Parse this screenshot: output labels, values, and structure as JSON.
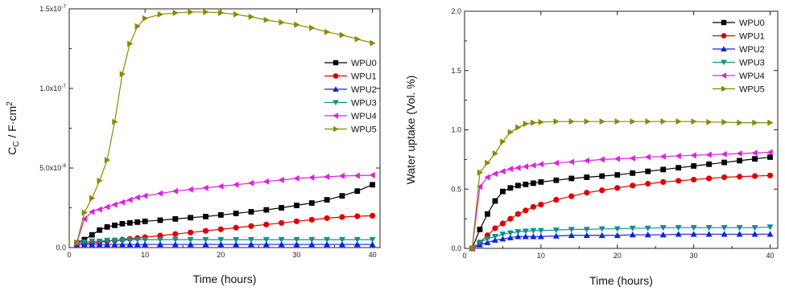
{
  "chart_data": [
    {
      "type": "line",
      "xlabel": "Time (hours)",
      "ylabel": {
        "main": "C",
        "sub": "C",
        "rest": " / F·cm",
        "sup": "2"
      },
      "xlim": [
        0,
        41
      ],
      "ylim": [
        0,
        1.5e-07
      ],
      "xticks": [
        0,
        10,
        20,
        30,
        40
      ],
      "yticks": [
        {
          "v": 0,
          "mant": "0.0",
          "exp": ""
        },
        {
          "v": 5e-08,
          "mant": "5.0x10",
          "exp": "-8"
        },
        {
          "v": 1e-07,
          "mant": "1.0x10",
          "exp": "-7"
        },
        {
          "v": 1.5e-07,
          "mant": "1.5x10",
          "exp": "-7"
        }
      ],
      "legend_position": "right",
      "series": [
        {
          "name": "WPU0",
          "color": "#000000",
          "marker": "square",
          "x": [
            1,
            2,
            3,
            4,
            5,
            6,
            7,
            8,
            9,
            10,
            12,
            14,
            16,
            18,
            20,
            22,
            24,
            26,
            28,
            30,
            32,
            34,
            36,
            38,
            40
          ],
          "y": [
            3e-09,
            5e-09,
            8e-09,
            1.1e-08,
            1.3e-08,
            1.4e-08,
            1.5e-08,
            1.55e-08,
            1.6e-08,
            1.65e-08,
            1.72e-08,
            1.8e-08,
            1.88e-08,
            1.95e-08,
            2.05e-08,
            2.15e-08,
            2.25e-08,
            2.37e-08,
            2.5e-08,
            2.65e-08,
            2.8e-08,
            3e-08,
            3.25e-08,
            3.55e-08,
            3.95e-08
          ]
        },
        {
          "name": "WPU1",
          "color": "#e00000",
          "marker": "circle",
          "x": [
            1,
            2,
            3,
            4,
            5,
            6,
            7,
            8,
            9,
            10,
            12,
            14,
            16,
            18,
            20,
            22,
            24,
            26,
            28,
            30,
            32,
            34,
            36,
            38,
            40
          ],
          "y": [
            2e-09,
            2.5e-09,
            3e-09,
            3.5e-09,
            4e-09,
            4.5e-09,
            5e-09,
            5.5e-09,
            6e-09,
            6.5e-09,
            7.5e-09,
            8.5e-09,
            9.5e-09,
            1.05e-08,
            1.15e-08,
            1.25e-08,
            1.35e-08,
            1.45e-08,
            1.55e-08,
            1.65e-08,
            1.75e-08,
            1.85e-08,
            1.92e-08,
            1.97e-08,
            2e-08
          ]
        },
        {
          "name": "WPU2",
          "color": "#1020e0",
          "marker": "triangle-up",
          "x": [
            1,
            2,
            3,
            4,
            5,
            6,
            7,
            8,
            9,
            10,
            12,
            14,
            16,
            18,
            20,
            22,
            24,
            26,
            28,
            30,
            32,
            34,
            36,
            38,
            40
          ],
          "y": [
            2e-09,
            2e-09,
            2e-09,
            2e-09,
            2e-09,
            2e-09,
            2e-09,
            2e-09,
            2e-09,
            2e-09,
            2e-09,
            2e-09,
            2e-09,
            2e-09,
            2e-09,
            2e-09,
            2e-09,
            2e-09,
            2e-09,
            2e-09,
            2e-09,
            2e-09,
            2e-09,
            2e-09,
            2e-09
          ]
        },
        {
          "name": "WPU3",
          "color": "#109090",
          "marker": "triangle-down",
          "x": [
            1,
            2,
            3,
            4,
            5,
            6,
            7,
            8,
            9,
            10,
            12,
            14,
            16,
            18,
            20,
            22,
            24,
            26,
            28,
            30,
            32,
            34,
            36,
            38,
            40
          ],
          "y": [
            3e-09,
            3.5e-09,
            4e-09,
            4e-09,
            4.5e-09,
            4.5e-09,
            4.5e-09,
            5e-09,
            5e-09,
            5e-09,
            5e-09,
            5e-09,
            5e-09,
            5e-09,
            5e-09,
            5e-09,
            5e-09,
            5e-09,
            5e-09,
            5e-09,
            5e-09,
            5e-09,
            5e-09,
            5e-09,
            5e-09
          ]
        },
        {
          "name": "WPU4",
          "color": "#e020e0",
          "marker": "triangle-left",
          "x": [
            1,
            2,
            3,
            4,
            5,
            6,
            7,
            8,
            9,
            10,
            12,
            14,
            16,
            18,
            20,
            22,
            24,
            26,
            28,
            30,
            32,
            34,
            36,
            38,
            40
          ],
          "y": [
            3e-09,
            1.8e-08,
            2.25e-08,
            2.4e-08,
            2.55e-08,
            2.7e-08,
            2.85e-08,
            3e-08,
            3.15e-08,
            3.25e-08,
            3.4e-08,
            3.55e-08,
            3.65e-08,
            3.75e-08,
            3.85e-08,
            3.95e-08,
            4.05e-08,
            4.15e-08,
            4.25e-08,
            4.35e-08,
            4.4e-08,
            4.45e-08,
            4.5e-08,
            4.52e-08,
            4.55e-08
          ]
        },
        {
          "name": "WPU5",
          "color": "#8a8a00",
          "marker": "triangle-right",
          "x": [
            1,
            2,
            3,
            4,
            5,
            6,
            7,
            8,
            9,
            10,
            12,
            14,
            16,
            18,
            20,
            22,
            24,
            26,
            28,
            30,
            32,
            34,
            36,
            38,
            40
          ],
          "y": [
            3e-09,
            2.2e-08,
            3.1e-08,
            4.2e-08,
            5.5e-08,
            7.9e-08,
            1.09e-07,
            1.28e-07,
            1.39e-07,
            1.44e-07,
            1.465e-07,
            1.475e-07,
            1.48e-07,
            1.48e-07,
            1.475e-07,
            1.465e-07,
            1.45e-07,
            1.43e-07,
            1.415e-07,
            1.4e-07,
            1.38e-07,
            1.355e-07,
            1.335e-07,
            1.31e-07,
            1.285e-07
          ]
        }
      ]
    },
    {
      "type": "line",
      "xlabel": "Time (hours)",
      "ylabel": "Water uptake (Vol. %)",
      "xlim": [
        0,
        41
      ],
      "ylim": [
        0,
        2.0
      ],
      "xticks": [
        0,
        10,
        20,
        30,
        40
      ],
      "yticks": [
        {
          "v": 0,
          "mant": "0.0",
          "exp": ""
        },
        {
          "v": 0.5,
          "mant": "0.5",
          "exp": ""
        },
        {
          "v": 1.0,
          "mant": "1.0",
          "exp": ""
        },
        {
          "v": 1.5,
          "mant": "1.5",
          "exp": ""
        },
        {
          "v": 2.0,
          "mant": "2.0",
          "exp": ""
        }
      ],
      "legend_position": "top-right",
      "series": [
        {
          "name": "WPU0",
          "color": "#000000",
          "marker": "square",
          "x": [
            1,
            2,
            3,
            4,
            5,
            6,
            7,
            8,
            9,
            10,
            12,
            14,
            16,
            18,
            20,
            22,
            24,
            26,
            28,
            30,
            32,
            34,
            36,
            38,
            40
          ],
          "y": [
            0,
            0.16,
            0.29,
            0.4,
            0.48,
            0.51,
            0.53,
            0.54,
            0.55,
            0.56,
            0.575,
            0.59,
            0.6,
            0.61,
            0.62,
            0.635,
            0.65,
            0.665,
            0.68,
            0.695,
            0.71,
            0.725,
            0.74,
            0.755,
            0.77
          ]
        },
        {
          "name": "WPU1",
          "color": "#e00000",
          "marker": "circle",
          "x": [
            1,
            2,
            3,
            4,
            5,
            6,
            7,
            8,
            9,
            10,
            12,
            14,
            16,
            18,
            20,
            22,
            24,
            26,
            28,
            30,
            32,
            34,
            36,
            38,
            40
          ],
          "y": [
            0,
            0.05,
            0.11,
            0.17,
            0.21,
            0.25,
            0.29,
            0.32,
            0.35,
            0.37,
            0.41,
            0.44,
            0.47,
            0.49,
            0.51,
            0.53,
            0.545,
            0.56,
            0.57,
            0.58,
            0.59,
            0.6,
            0.605,
            0.61,
            0.615
          ]
        },
        {
          "name": "WPU2",
          "color": "#1020e0",
          "marker": "triangle-up",
          "x": [
            1,
            2,
            3,
            4,
            5,
            6,
            7,
            8,
            9,
            10,
            12,
            14,
            16,
            18,
            20,
            22,
            24,
            26,
            28,
            30,
            32,
            34,
            36,
            38,
            40
          ],
          "y": [
            0,
            0.03,
            0.05,
            0.07,
            0.08,
            0.09,
            0.1,
            0.1,
            0.1,
            0.1,
            0.105,
            0.11,
            0.11,
            0.11,
            0.11,
            0.115,
            0.115,
            0.115,
            0.12,
            0.12,
            0.12,
            0.12,
            0.12,
            0.12,
            0.12
          ]
        },
        {
          "name": "WPU3",
          "color": "#109090",
          "marker": "triangle-down",
          "x": [
            1,
            2,
            3,
            4,
            5,
            6,
            7,
            8,
            9,
            10,
            12,
            14,
            16,
            18,
            20,
            22,
            24,
            26,
            28,
            30,
            32,
            34,
            36,
            38,
            40
          ],
          "y": [
            0,
            0.05,
            0.08,
            0.1,
            0.12,
            0.13,
            0.14,
            0.145,
            0.15,
            0.15,
            0.155,
            0.16,
            0.16,
            0.165,
            0.165,
            0.17,
            0.17,
            0.175,
            0.175,
            0.175,
            0.175,
            0.175,
            0.175,
            0.175,
            0.18
          ]
        },
        {
          "name": "WPU4",
          "color": "#e020e0",
          "marker": "triangle-left",
          "x": [
            1,
            2,
            3,
            4,
            5,
            6,
            7,
            8,
            9,
            10,
            12,
            14,
            16,
            18,
            20,
            22,
            24,
            26,
            28,
            30,
            32,
            34,
            36,
            38,
            40
          ],
          "y": [
            0,
            0.52,
            0.6,
            0.63,
            0.65,
            0.67,
            0.68,
            0.69,
            0.7,
            0.71,
            0.72,
            0.73,
            0.74,
            0.75,
            0.755,
            0.76,
            0.77,
            0.775,
            0.78,
            0.785,
            0.79,
            0.795,
            0.8,
            0.805,
            0.81
          ]
        },
        {
          "name": "WPU5",
          "color": "#8a8a00",
          "marker": "triangle-right",
          "x": [
            1,
            2,
            3,
            4,
            5,
            6,
            7,
            8,
            9,
            10,
            12,
            14,
            16,
            18,
            20,
            22,
            24,
            26,
            28,
            30,
            32,
            34,
            36,
            38,
            40
          ],
          "y": [
            0,
            0.64,
            0.72,
            0.8,
            0.9,
            0.98,
            1.02,
            1.05,
            1.06,
            1.065,
            1.07,
            1.07,
            1.07,
            1.07,
            1.07,
            1.07,
            1.07,
            1.07,
            1.07,
            1.07,
            1.065,
            1.065,
            1.06,
            1.06,
            1.06
          ]
        }
      ]
    }
  ]
}
